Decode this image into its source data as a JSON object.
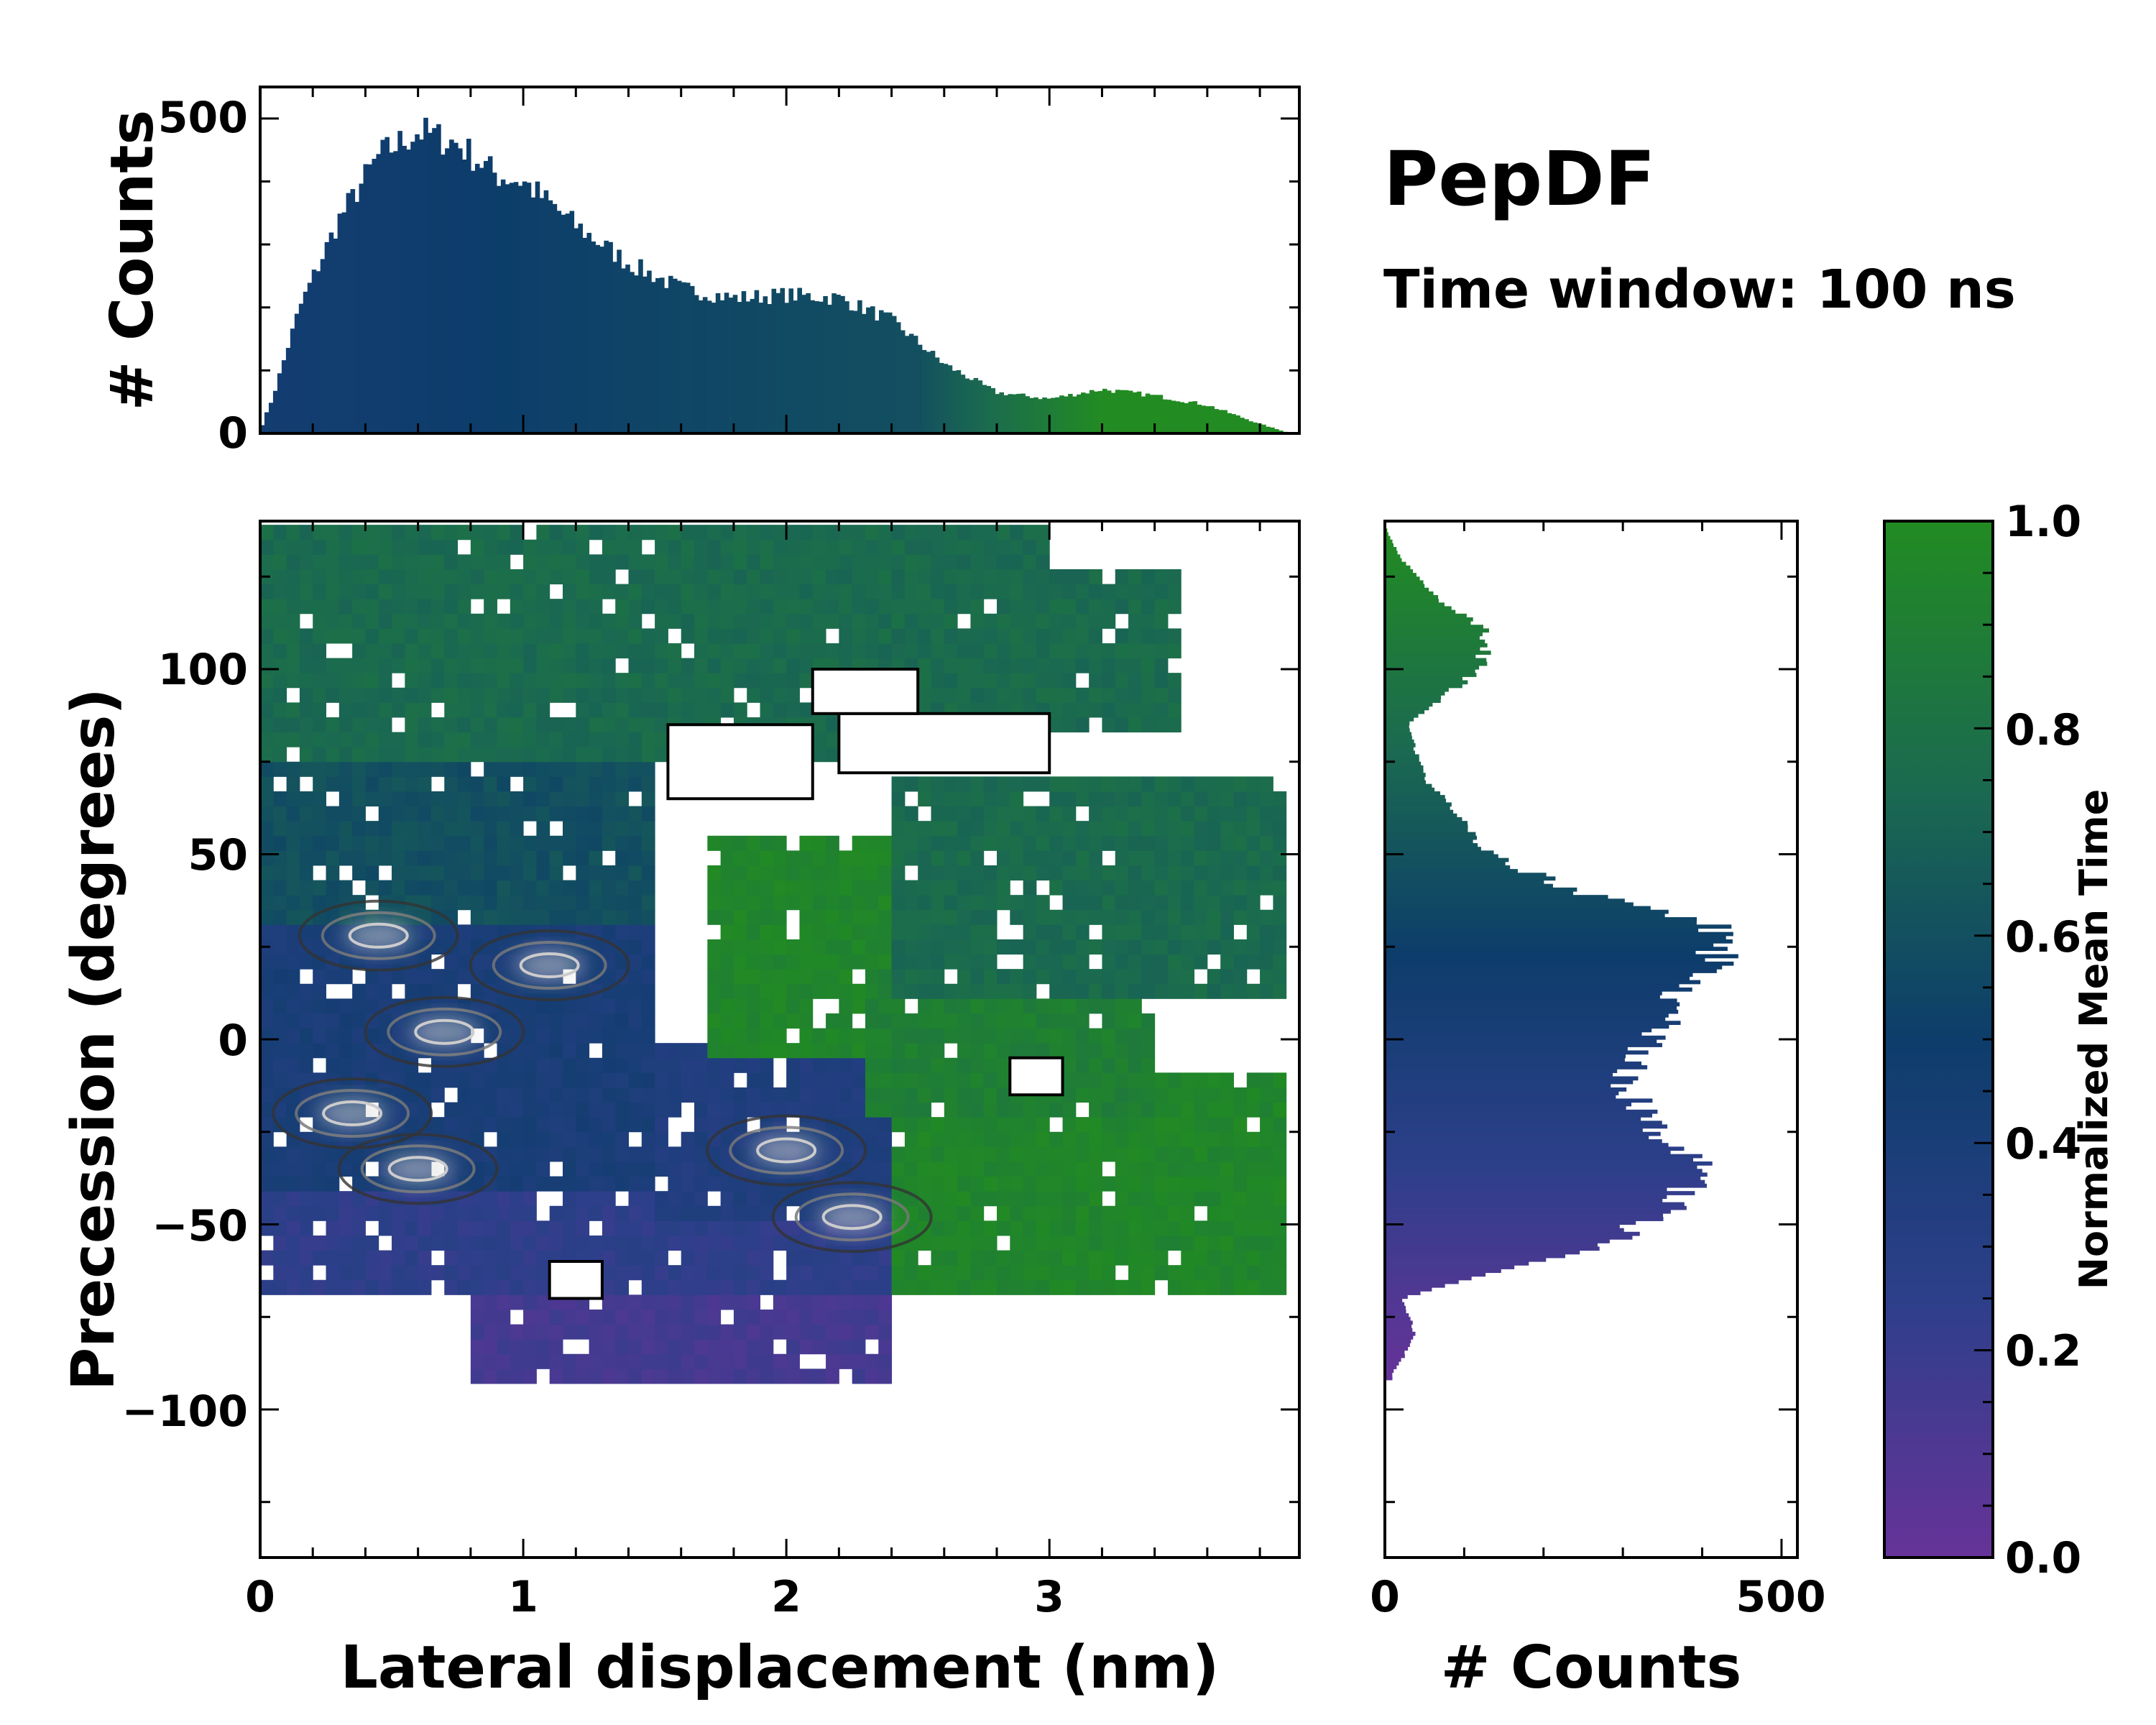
{
  "chart_data": {
    "type": "heatmap",
    "title": "PepDF",
    "subtitle": "Time window: 100 ns",
    "xlabel": "Lateral displacement (nm)",
    "ylabel": "Precession (degrees)",
    "xlim": [
      0,
      3.95
    ],
    "ylim": [
      -140,
      140
    ],
    "xticks": [
      "0",
      "1",
      "2",
      "3"
    ],
    "yticks": [
      "−100",
      "−50",
      "0",
      "50",
      "100"
    ],
    "colorbar": {
      "label": "Normalized Mean Time",
      "range": [
        0.0,
        1.0
      ],
      "ticks": [
        "0.0",
        "0.2",
        "0.4",
        "0.6",
        "0.8",
        "1.0"
      ],
      "colors": [
        "#663399",
        "#2d3f8a",
        "#0d3d6b",
        "#1b6b4f",
        "#228b22"
      ]
    },
    "top_histogram": {
      "ylabel": "# Counts",
      "ylim": [
        0,
        550
      ],
      "yticks": [
        "0",
        "500"
      ],
      "profile_x": [
        0.0,
        0.05,
        0.15,
        0.3,
        0.45,
        0.6,
        0.75,
        0.9,
        1.0,
        1.2,
        1.4,
        1.6,
        1.8,
        2.0,
        2.2,
        2.4,
        2.6,
        2.8,
        3.0,
        3.2,
        3.4,
        3.6,
        3.8,
        3.9
      ],
      "profile_counts": [
        5,
        60,
        200,
        340,
        440,
        480,
        460,
        410,
        400,
        330,
        270,
        230,
        215,
        220,
        215,
        180,
        110,
        65,
        55,
        70,
        60,
        45,
        15,
        2
      ]
    },
    "right_histogram": {
      "xlabel": "# Counts",
      "xlim": [
        0,
        520
      ],
      "xticks": [
        "0",
        "500"
      ],
      "profile_y": [
        -90,
        -80,
        -70,
        -62,
        -55,
        -45,
        -35,
        -25,
        -10,
        0,
        10,
        20,
        30,
        40,
        50,
        60,
        70,
        85,
        100,
        110,
        120,
        130,
        137
      ],
      "profile_counts": [
        10,
        40,
        20,
        150,
        280,
        360,
        400,
        340,
        300,
        340,
        360,
        420,
        420,
        240,
        130,
        100,
        50,
        30,
        120,
        130,
        60,
        20,
        3
      ]
    },
    "heatmap_regions": [
      {
        "x": [
          0.0,
          1.5
        ],
        "y": [
          -65,
          30
        ],
        "value": 0.4
      },
      {
        "x": [
          0.8,
          2.4
        ],
        "y": [
          -93,
          -45
        ],
        "value": 0.15
      },
      {
        "x": [
          0.0,
          2.6
        ],
        "y": [
          -70,
          -40
        ],
        "value": 0.25
      },
      {
        "x": [
          1.5,
          2.6
        ],
        "y": [
          -50,
          0
        ],
        "value": 0.35
      },
      {
        "x": [
          0.0,
          1.5
        ],
        "y": [
          30,
          75
        ],
        "value": 0.6
      },
      {
        "x": [
          0.0,
          3.0
        ],
        "y": [
          75,
          138
        ],
        "value": 0.75
      },
      {
        "x": [
          1.7,
          2.6
        ],
        "y": [
          -5,
          55
        ],
        "value": 0.95
      },
      {
        "x": [
          2.4,
          3.9
        ],
        "y": [
          -70,
          -10
        ],
        "value": 0.95
      },
      {
        "x": [
          2.3,
          3.4
        ],
        "y": [
          -20,
          20
        ],
        "value": 0.9
      },
      {
        "x": [
          2.4,
          3.9
        ],
        "y": [
          10,
          70
        ],
        "value": 0.75
      },
      {
        "x": [
          2.5,
          3.5
        ],
        "y": [
          85,
          125
        ],
        "value": 0.75
      }
    ],
    "density_peaks": [
      {
        "x": 0.45,
        "y": 28
      },
      {
        "x": 1.1,
        "y": 20
      },
      {
        "x": 0.7,
        "y": 2
      },
      {
        "x": 0.6,
        "y": -35
      },
      {
        "x": 0.35,
        "y": -20
      },
      {
        "x": 2.0,
        "y": -30
      },
      {
        "x": 2.25,
        "y": -48
      }
    ]
  }
}
